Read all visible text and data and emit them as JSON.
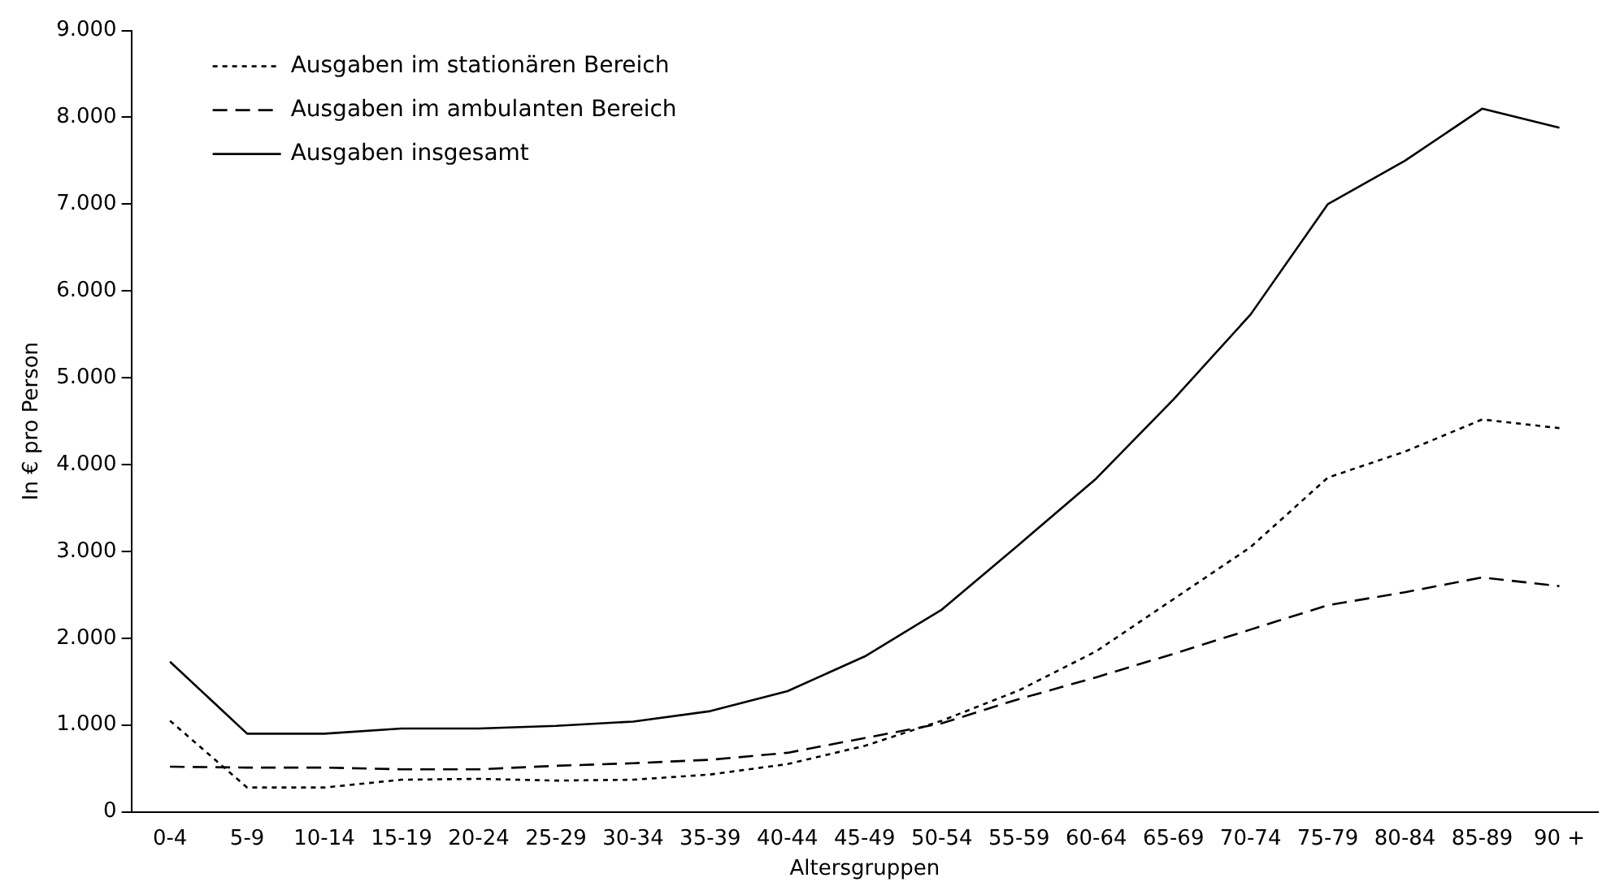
{
  "chart_data": {
    "type": "line",
    "xlabel": "Altersgruppen",
    "ylabel": "In € pro Person",
    "categories": [
      "0-4",
      "5-9",
      "10-14",
      "15-19",
      "20-24",
      "25-29",
      "30-34",
      "35-39",
      "40-44",
      "45-49",
      "50-54",
      "55-59",
      "60-64",
      "65-69",
      "70-74",
      "75-79",
      "80-84",
      "85-89",
      "90 +"
    ],
    "series": [
      {
        "name": "Ausgaben im stationären Bereich",
        "color": "#000000",
        "line_style": "dotted",
        "values": [
          1050,
          280,
          280,
          370,
          380,
          360,
          370,
          430,
          550,
          760,
          1050,
          1400,
          1850,
          2450,
          3050,
          3850,
          4150,
          4520,
          4420
        ]
      },
      {
        "name": "Ausgaben im ambulanten Bereich",
        "color": "#000000",
        "line_style": "dashed",
        "values": [
          520,
          510,
          510,
          490,
          490,
          530,
          560,
          600,
          680,
          850,
          1020,
          1300,
          1550,
          1820,
          2100,
          2380,
          2530,
          2700,
          2600
        ]
      },
      {
        "name": "Ausgaben insgesamt",
        "color": "#000000",
        "line_style": "solid",
        "values": [
          1730,
          900,
          900,
          960,
          960,
          990,
          1040,
          1160,
          1390,
          1790,
          2330,
          3080,
          3840,
          4750,
          5730,
          7000,
          7500,
          8100,
          7880
        ]
      }
    ],
    "ylim": [
      0,
      9000
    ],
    "yticks": [
      {
        "value": 0,
        "label": "0"
      },
      {
        "value": 1000,
        "label": "1.000"
      },
      {
        "value": 2000,
        "label": "2.000"
      },
      {
        "value": 3000,
        "label": "3.000"
      },
      {
        "value": 4000,
        "label": "4.000"
      },
      {
        "value": 5000,
        "label": "5.000"
      },
      {
        "value": 6000,
        "label": "6.000"
      },
      {
        "value": 7000,
        "label": "7.000"
      },
      {
        "value": 8000,
        "label": "8.000"
      },
      {
        "value": 9000,
        "label": "9.000"
      }
    ],
    "grid": false,
    "legend": "top left",
    "marker": "none"
  }
}
